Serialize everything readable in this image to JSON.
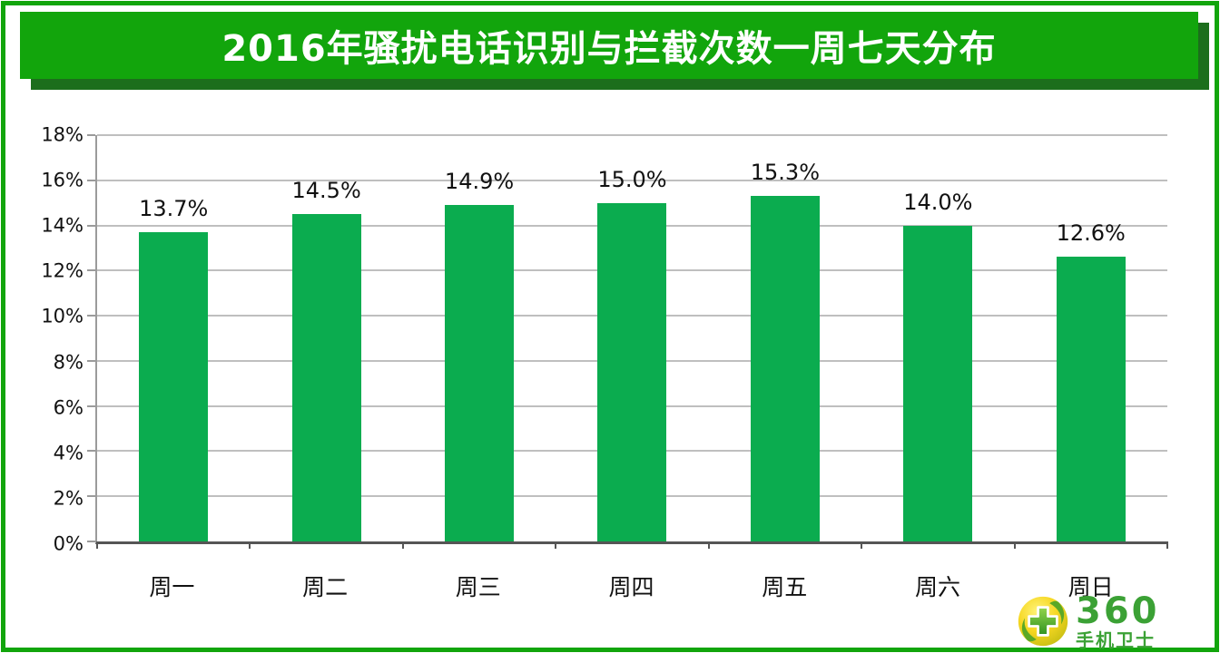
{
  "page": {
    "title": "2016年骚扰电话识别与拦截次数一周七天分布",
    "colors": {
      "brand_green": "#12A50C",
      "banner_shadow_green": "#1C6E1C",
      "bar_green": "#0BAC4F",
      "gridline_gray": "#BFBFBF",
      "logo_text_green": "#3BA135"
    }
  },
  "chart_data": {
    "type": "bar",
    "title": "2016年骚扰电话识别与拦截次数一周七天分布",
    "categories": [
      "周一",
      "周二",
      "周三",
      "周四",
      "周五",
      "周六",
      "周日"
    ],
    "values": [
      13.7,
      14.5,
      14.9,
      15.0,
      15.3,
      14.0,
      12.6
    ],
    "data_labels": [
      "13.7%",
      "14.5%",
      "14.9%",
      "15.0%",
      "15.3%",
      "14.0%",
      "12.6%"
    ],
    "xlabel": "",
    "ylabel": "",
    "ylim": [
      0,
      18
    ],
    "ytick_step": 2,
    "ytick_labels": [
      "0%",
      "2%",
      "4%",
      "6%",
      "8%",
      "10%",
      "12%",
      "14%",
      "16%",
      "18%"
    ],
    "grid": true,
    "legend": false,
    "bar_color": "#0BAC4F"
  },
  "logo": {
    "brand": "360",
    "product": "手机卫士"
  }
}
